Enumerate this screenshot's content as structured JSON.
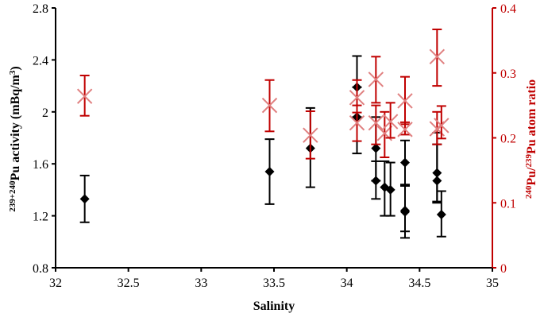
{
  "chart_data": {
    "type": "scatter",
    "title": "",
    "xlabel": "Salinity",
    "ylabel": "239+240Pu activity (mBq/m3)",
    "ylabel_parts": {
      "sup": "239+240",
      "main": "Pu activity (mBq/m",
      "sup2": "3",
      "end": ")"
    },
    "y2label": "240Pu/239Pu atom ratio",
    "y2label_parts": {
      "sup1": "240",
      "mid": "Pu/",
      "sup2": "239",
      "end": "Pu atom ratio"
    },
    "xlim": [
      32,
      35
    ],
    "ylim": [
      0.8,
      2.8
    ],
    "y2lim": [
      0,
      0.4
    ],
    "x_ticks": [
      "32",
      "32.5",
      "33",
      "33.5",
      "34",
      "34.5",
      "35"
    ],
    "y_ticks": [
      "0.8",
      "1.2",
      "1.6",
      "2",
      "2.4",
      "2.8"
    ],
    "y2_ticks": [
      "0",
      "0.1",
      "0.2",
      "0.3",
      "0.4"
    ],
    "grid": false,
    "legend": null,
    "colors": {
      "activity": "#000000",
      "ratio": "#c00000",
      "ratio_marker": "#e08080"
    },
    "series": [
      {
        "name": "239+240Pu activity",
        "axis": "left",
        "marker": "diamond",
        "points": [
          {
            "x": 32.2,
            "y": 1.33,
            "err_low": 1.15,
            "err_high": 1.51
          },
          {
            "x": 33.47,
            "y": 1.54,
            "err_low": 1.29,
            "err_high": 1.79
          },
          {
            "x": 33.75,
            "y": 1.72,
            "err_low": 1.42,
            "err_high": 2.03
          },
          {
            "x": 34.07,
            "y": 2.19,
            "err_low": 1.96,
            "err_high": 2.43
          },
          {
            "x": 34.07,
            "y": 1.96,
            "err_low": 1.68,
            "err_high": 2.19
          },
          {
            "x": 34.2,
            "y": 1.72,
            "err_low": 1.47,
            "err_high": 1.96
          },
          {
            "x": 34.2,
            "y": 1.47,
            "err_low": 1.33,
            "err_high": 1.62
          },
          {
            "x": 34.26,
            "y": 1.42,
            "err_low": 1.2,
            "err_high": 1.62
          },
          {
            "x": 34.3,
            "y": 1.4,
            "err_low": 1.2,
            "err_high": 1.61
          },
          {
            "x": 34.4,
            "y": 1.61,
            "err_low": 1.44,
            "err_high": 1.78
          },
          {
            "x": 34.4,
            "y": 1.24,
            "err_low": 1.03,
            "err_high": 1.44
          },
          {
            "x": 34.4,
            "y": 1.23,
            "err_low": 1.08,
            "err_high": 1.43
          },
          {
            "x": 34.62,
            "y": 1.53,
            "err_low": 1.3,
            "err_high": 1.75
          },
          {
            "x": 34.62,
            "y": 1.47,
            "err_low": 1.31,
            "err_high": 1.84
          },
          {
            "x": 34.65,
            "y": 1.21,
            "err_low": 1.04,
            "err_high": 1.39
          }
        ]
      },
      {
        "name": "240Pu/239Pu atom ratio",
        "axis": "right",
        "marker": "x-cross",
        "points": [
          {
            "x": 32.2,
            "y": 0.264,
            "err_low": 0.234,
            "err_high": 0.296
          },
          {
            "x": 33.47,
            "y": 0.25,
            "err_low": 0.21,
            "err_high": 0.289
          },
          {
            "x": 33.75,
            "y": 0.204,
            "err_low": 0.168,
            "err_high": 0.241
          },
          {
            "x": 34.07,
            "y": 0.262,
            "err_low": 0.239,
            "err_high": 0.289
          },
          {
            "x": 34.07,
            "y": 0.223,
            "err_low": 0.195,
            "err_high": 0.25
          },
          {
            "x": 34.2,
            "y": 0.29,
            "err_low": 0.254,
            "err_high": 0.325
          },
          {
            "x": 34.2,
            "y": 0.223,
            "err_low": 0.19,
            "err_high": 0.25
          },
          {
            "x": 34.26,
            "y": 0.207,
            "err_low": 0.17,
            "err_high": 0.24
          },
          {
            "x": 34.3,
            "y": 0.225,
            "err_low": 0.2,
            "err_high": 0.254
          },
          {
            "x": 34.4,
            "y": 0.257,
            "err_low": 0.221,
            "err_high": 0.294
          },
          {
            "x": 34.4,
            "y": 0.213,
            "err_low": 0.205,
            "err_high": 0.224
          },
          {
            "x": 34.62,
            "y": 0.325,
            "err_low": 0.28,
            "err_high": 0.367
          },
          {
            "x": 34.62,
            "y": 0.214,
            "err_low": 0.19,
            "err_high": 0.24
          },
          {
            "x": 34.65,
            "y": 0.219,
            "err_low": 0.199,
            "err_high": 0.249
          }
        ]
      }
    ]
  }
}
